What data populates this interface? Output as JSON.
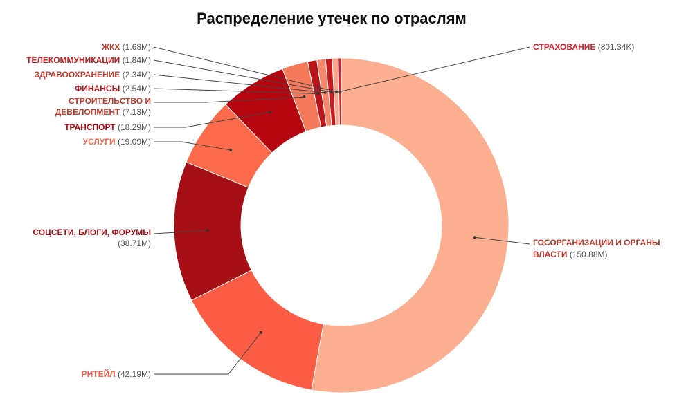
{
  "chart_data": {
    "type": "pie",
    "donut": true,
    "title": "Распределение утечек по отраслям",
    "slices": [
      {
        "name": "ГОСОРГАНИЗАЦИИ И ОРГАНЫ ВЛАСТИ",
        "value": 150.88,
        "value_label": "(150.88M)",
        "color": "#fcae91"
      },
      {
        "name": "РИТЕЙЛ",
        "value": 42.19,
        "value_label": "(42.19M)",
        "color": "#fb5c44"
      },
      {
        "name": "СОЦСЕТИ, БЛОГИ, ФОРУМЫ",
        "value": 38.71,
        "value_label": "(38.71M)",
        "color": "#a50f15"
      },
      {
        "name": "УСЛУГИ",
        "value": 19.09,
        "value_label": "(19.09M)",
        "color": "#fb6a4a"
      },
      {
        "name": "ТРАНСПОРТ",
        "value": 18.29,
        "value_label": "(18.29M)",
        "color": "#b5050f"
      },
      {
        "name": "СТРОИТЕЛЬСТВО И ДЕВЕЛОПМЕНТ",
        "value": 7.13,
        "value_label": "(7.13M)",
        "color": "#f4795b"
      },
      {
        "name": "ФИНАНСЫ",
        "value": 2.54,
        "value_label": "(2.54M)",
        "color": "#b8141a"
      },
      {
        "name": "ЗДРАВООХРАНЕНИЕ",
        "value": 2.34,
        "value_label": "(2.34M)",
        "color": "#f6876d"
      },
      {
        "name": "ТЕЛЕКОММУНИКАЦИИ",
        "value": 1.84,
        "value_label": "(1.84M)",
        "color": "#c81b1f"
      },
      {
        "name": "ЖКХ",
        "value": 1.68,
        "value_label": "(1.68M)",
        "color": "#f9a68a"
      },
      {
        "name": "СТРАХОВАНИЕ",
        "value": 0.80134,
        "value_label": "(801.34K)",
        "color": "#d2222d"
      }
    ],
    "legend": "none",
    "start_angle_deg": 0,
    "direction": "clockwise"
  }
}
